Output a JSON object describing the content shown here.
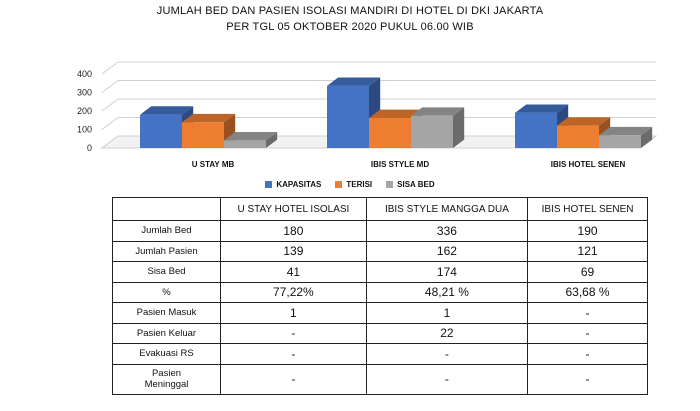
{
  "title_line1": "JUMLAH BED DAN PASIEN ISOLASI MANDIRI DI HOTEL DI DKI JAKARTA",
  "title_line2": "PER TGL 05 OKTOBER 2020 PUKUL 06.00 WIB",
  "chart_data": {
    "type": "bar",
    "categories": [
      "U STAY MB",
      "IBIS STYLE MD",
      "IBIS HOTEL SENEN"
    ],
    "series": [
      {
        "name": "KAPASITAS",
        "values": [
          180,
          336,
          190
        ],
        "color": "#4472c4"
      },
      {
        "name": "TERISI",
        "values": [
          139,
          162,
          121
        ],
        "color": "#ed7d31"
      },
      {
        "name": "SISA BED",
        "values": [
          41,
          174,
          69
        ],
        "color": "#a5a5a5"
      }
    ],
    "yticks": [
      0,
      100,
      200,
      300,
      400
    ],
    "ylim": [
      0,
      400
    ],
    "legend": "bottom",
    "style": "3d-clustered"
  },
  "table": {
    "headers": [
      "",
      "U STAY HOTEL ISOLASI",
      "IBIS STYLE MANGGA DUA",
      "IBIS HOTEL SENEN"
    ],
    "rows": [
      {
        "label": "Jumlah Bed",
        "values": [
          "180",
          "336",
          "190"
        ]
      },
      {
        "label": "Jumlah Pasien",
        "values": [
          "139",
          "162",
          "121"
        ]
      },
      {
        "label": "Sisa Bed",
        "values": [
          "41",
          "174",
          "69"
        ]
      },
      {
        "label": "%",
        "values": [
          "77,22%",
          "48,21 %",
          "63,68 %"
        ]
      },
      {
        "label": "Pasien Masuk",
        "values": [
          "1",
          "1",
          "-"
        ]
      },
      {
        "label": "Pasien Keluar",
        "values": [
          "-",
          "22",
          "-"
        ]
      },
      {
        "label": "Evakuasi RS",
        "values": [
          "-",
          "-",
          "-"
        ]
      },
      {
        "label": "Pasien Meninggal",
        "values": [
          "-",
          "-",
          "-"
        ]
      }
    ]
  }
}
